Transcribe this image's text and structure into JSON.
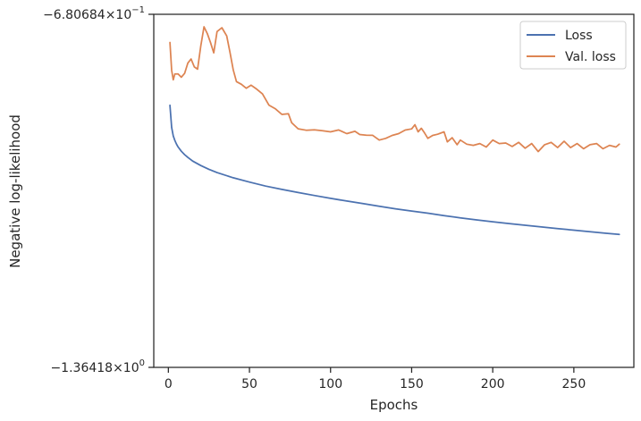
{
  "chart_data": {
    "type": "line",
    "xlabel": "Epochs",
    "ylabel": "Negative log-likelihood",
    "xlim": [
      -9,
      287
    ],
    "xticks": [
      0,
      50,
      100,
      150,
      200,
      250
    ],
    "yscale": "log",
    "ylim": [
      -1.36418,
      -0.680684
    ],
    "ytick_labels": {
      "top": {
        "base": "−6.80684",
        "times": "×10",
        "exp": "−1"
      },
      "bottom": {
        "base": "−1.36418",
        "times": "×10",
        "exp": "0"
      }
    },
    "grid": false,
    "legend_position": "top-right",
    "series": [
      {
        "name": "Loss",
        "color": "#4c72b0",
        "x": [
          1,
          2,
          3,
          4,
          5,
          6,
          8,
          10,
          12,
          15,
          20,
          25,
          30,
          40,
          50,
          60,
          70,
          80,
          90,
          100,
          110,
          120,
          130,
          140,
          150,
          160,
          170,
          180,
          190,
          200,
          210,
          220,
          230,
          240,
          250,
          260,
          270,
          278
        ],
        "y": [
          -0.8142,
          -0.8506,
          -0.8649,
          -0.8727,
          -0.8789,
          -0.8839,
          -0.8913,
          -0.8974,
          -0.9023,
          -0.9088,
          -0.9168,
          -0.9236,
          -0.9296,
          -0.9391,
          -0.9472,
          -0.9546,
          -0.9609,
          -0.9669,
          -0.9725,
          -0.9779,
          -0.9831,
          -0.9881,
          -0.9934,
          -0.9983,
          -1.0028,
          -1.007,
          -1.0117,
          -1.0162,
          -1.0204,
          -1.0242,
          -1.0278,
          -1.0312,
          -1.0346,
          -1.038,
          -1.0412,
          -1.0444,
          -1.0477,
          -1.0501
        ]
      },
      {
        "name": "Val. loss",
        "color": "#dd8452",
        "x": [
          1,
          2,
          3,
          4,
          6,
          8,
          10,
          12,
          14,
          16,
          18,
          20,
          22,
          24,
          26,
          28,
          30,
          33,
          36,
          38,
          40,
          42,
          45,
          48,
          51,
          54,
          58,
          62,
          66,
          70,
          74,
          76,
          80,
          85,
          90,
          95,
          100,
          105,
          110,
          115,
          118,
          122,
          126,
          130,
          134,
          138,
          142,
          146,
          150,
          152,
          154,
          156,
          158,
          160,
          163,
          166,
          170,
          172,
          175,
          178,
          180,
          184,
          188,
          192,
          196,
          200,
          204,
          208,
          212,
          216,
          220,
          224,
          228,
          232,
          236,
          240,
          244,
          248,
          252,
          256,
          260,
          264,
          268,
          272,
          276,
          278
        ],
        "y": [
          -0.7195,
          -0.76,
          -0.7744,
          -0.7655,
          -0.7656,
          -0.7705,
          -0.7647,
          -0.7493,
          -0.7433,
          -0.755,
          -0.7584,
          -0.7244,
          -0.6977,
          -0.707,
          -0.7197,
          -0.7343,
          -0.7042,
          -0.6989,
          -0.7103,
          -0.7339,
          -0.7594,
          -0.7771,
          -0.7812,
          -0.7873,
          -0.7826,
          -0.7879,
          -0.7962,
          -0.814,
          -0.82,
          -0.829,
          -0.8278,
          -0.8425,
          -0.8528,
          -0.8553,
          -0.8547,
          -0.856,
          -0.8579,
          -0.8548,
          -0.861,
          -0.857,
          -0.8625,
          -0.8636,
          -0.8638,
          -0.872,
          -0.869,
          -0.864,
          -0.861,
          -0.855,
          -0.853,
          -0.846,
          -0.858,
          -0.852,
          -0.86,
          -0.869,
          -0.864,
          -0.862,
          -0.858,
          -0.875,
          -0.868,
          -0.88,
          -0.872,
          -0.879,
          -0.881,
          -0.878,
          -0.884,
          -0.872,
          -0.878,
          -0.877,
          -0.883,
          -0.876,
          -0.886,
          -0.878,
          -0.892,
          -0.88,
          -0.876,
          -0.885,
          -0.874,
          -0.885,
          -0.878,
          -0.887,
          -0.88,
          -0.878,
          -0.887,
          -0.881,
          -0.884,
          -0.879
        ]
      }
    ]
  }
}
